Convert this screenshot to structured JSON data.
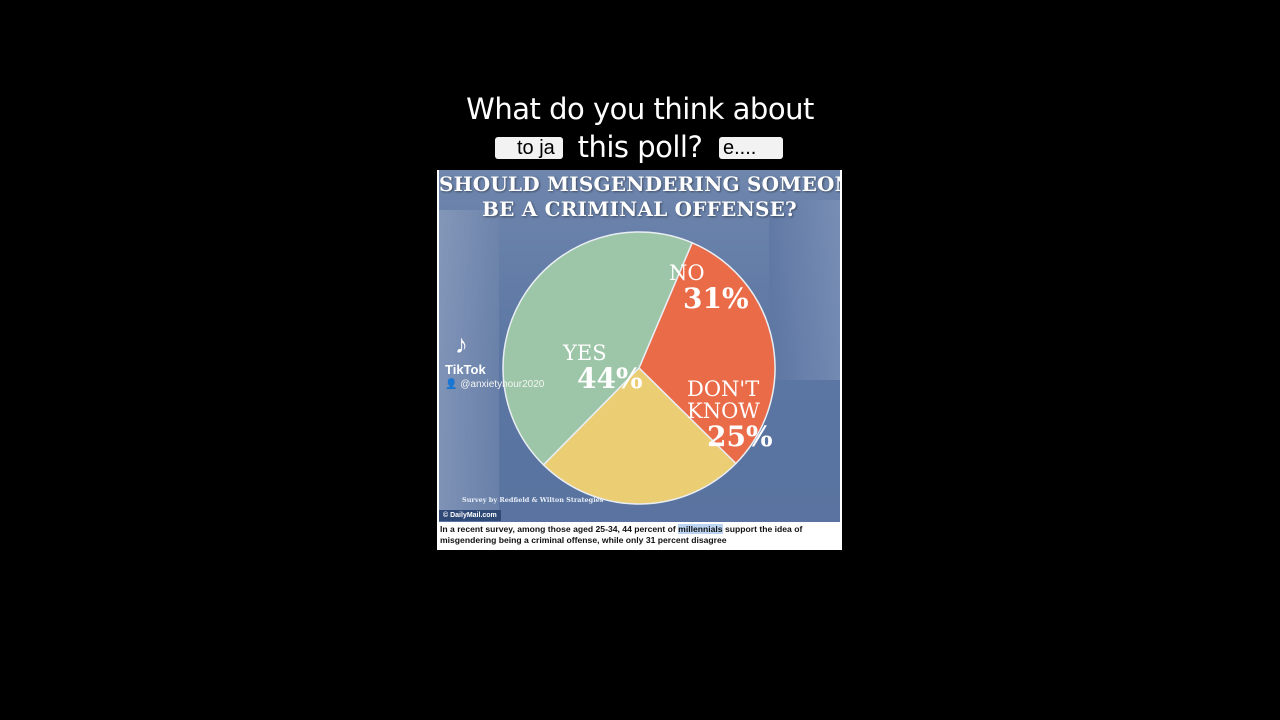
{
  "overlay": {
    "line1": "What do you think about",
    "line2": "this poll?",
    "caption_left": "to ja",
    "caption_right": "e...."
  },
  "watermark": {
    "brand": "TikTok",
    "user": "@anxietyhour2020"
  },
  "chart_data": {
    "type": "pie",
    "title": "SHOULD MISGENDERING SOMEONE BE A CRIMINAL OFFENSE?",
    "title_lines": [
      "SHOULD MISGENDERING SOMEONE",
      "BE A CRIMINAL OFFENSE?"
    ],
    "slices": [
      {
        "label": "NO",
        "label_lines": [
          "NO"
        ],
        "value": 31,
        "value_text": "31%",
        "color": "#ea6b47"
      },
      {
        "label": "DON'T KNOW",
        "label_lines": [
          "DON'T",
          "KNOW"
        ],
        "value": 25,
        "value_text": "25%",
        "color": "#ebcd74"
      },
      {
        "label": "YES",
        "label_lines": [
          "YES"
        ],
        "value": 44,
        "value_text": "44%",
        "color": "#9cc6a7"
      }
    ],
    "source": "Survey by Redfield & Wilton Strategies"
  },
  "credit": "© DailyMail.com",
  "description": {
    "before": "In a recent survey, among those aged 25-34, 44 percent of ",
    "highlight": "millennials",
    "after": " support the idea of misgendering being a criminal offense, while only 31 percent disagree"
  }
}
